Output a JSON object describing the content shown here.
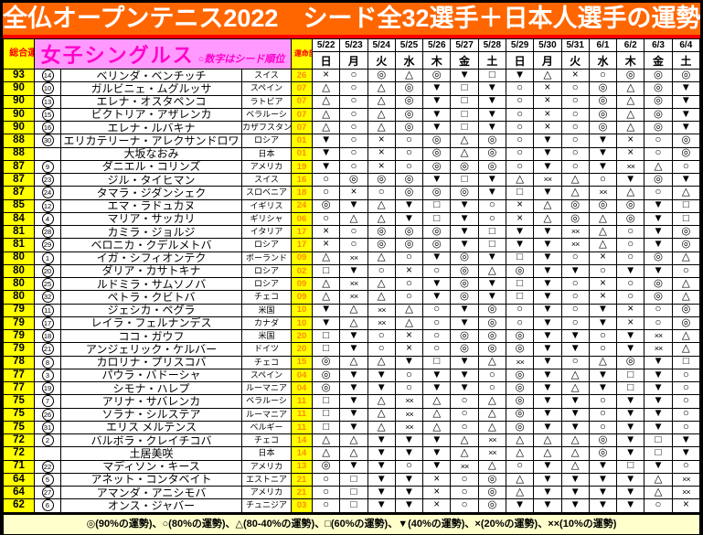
{
  "title": "全仏オープンテニス2022　シード全32選手＋日本人選手の運勢",
  "header": {
    "overall_label": "総合運勢",
    "section_title": "女子シングルス",
    "section_subtitle": "○数字はシード順位",
    "room_label": "運命部屋",
    "dates": [
      {
        "date": "5/22",
        "day": "日"
      },
      {
        "date": "5/23",
        "day": "月"
      },
      {
        "date": "5/24",
        "day": "火"
      },
      {
        "date": "5/25",
        "day": "水"
      },
      {
        "date": "5/26",
        "day": "木"
      },
      {
        "date": "5/27",
        "day": "金"
      },
      {
        "date": "5/28",
        "day": "土"
      },
      {
        "date": "5/29",
        "day": "日"
      },
      {
        "date": "5/30",
        "day": "月"
      },
      {
        "date": "5/31",
        "day": "火"
      },
      {
        "date": "6/1",
        "day": "水"
      },
      {
        "date": "6/2",
        "day": "木"
      },
      {
        "date": "6/3",
        "day": "金"
      },
      {
        "date": "6/4",
        "day": "土"
      }
    ]
  },
  "legend": "◎(90%の運勢)、○(80%の運勢)、△(80-40%の運勢)、□(60%の運勢)、▼(40%の運勢)、×(20%の運勢)、××(10%の運勢)",
  "colors": {
    "banner-bg": "#FF6600",
    "strip": "#FF0000",
    "yellow": "#FFFF00",
    "red-text": "#FF0000",
    "pink-bg": "#FF99FF",
    "pink-text": "#FF00CC",
    "room-text": "#FF8C00",
    "legend-bg": "#FFFFCC"
  },
  "rows": [
    {
      "score": "93",
      "seed": "14",
      "name": "ベリンダ・ベンチッチ",
      "country": "スイス",
      "room": "26",
      "fortunes": [
        "×",
        "○",
        "◎",
        "△",
        "◎",
        "▼",
        "□",
        "▼",
        "△",
        "×",
        "○",
        "◎",
        "◎",
        "◎"
      ]
    },
    {
      "score": "90",
      "seed": "10",
      "name": "ガルビニェ・ムグルッサ",
      "country": "スペイン",
      "room": "07",
      "fortunes": [
        "△",
        "○",
        "△",
        "◎",
        "▼",
        "□",
        "▼",
        "○",
        "×",
        "○",
        "◎",
        "△",
        "◎",
        "▼"
      ]
    },
    {
      "score": "90",
      "seed": "13",
      "name": "エレナ・オスタペンコ",
      "country": "ラトビア",
      "room": "07",
      "fortunes": [
        "△",
        "○",
        "△",
        "◎",
        "▼",
        "□",
        "▼",
        "○",
        "×",
        "○",
        "◎",
        "△",
        "◎",
        "▼"
      ]
    },
    {
      "score": "90",
      "seed": "15",
      "name": "ビクトリア・アザレンカ",
      "country": "ベラルーシ",
      "room": "07",
      "fortunes": [
        "△",
        "○",
        "△",
        "◎",
        "▼",
        "□",
        "▼",
        "○",
        "×",
        "○",
        "◎",
        "△",
        "◎",
        "▼"
      ]
    },
    {
      "score": "90",
      "seed": "16",
      "name": "エレナ・ルバキナ",
      "country": "カザフスタン",
      "room": "07",
      "fortunes": [
        "△",
        "○",
        "△",
        "◎",
        "▼",
        "□",
        "▼",
        "○",
        "×",
        "○",
        "◎",
        "△",
        "◎",
        "▼"
      ]
    },
    {
      "score": "88",
      "seed": "30",
      "name": "エリカテリーナ・アレクサンドロワ",
      "country": "ロシア",
      "room": "01",
      "fortunes": [
        "▼",
        "○",
        "×",
        "○",
        "◎",
        "△",
        "◎",
        "○",
        "▼",
        "○",
        "▼",
        "×",
        "○",
        "◎"
      ]
    },
    {
      "score": "88",
      "seed": "",
      "name": "大坂なおみ",
      "country": "日本",
      "room": "01",
      "fortunes": [
        "▼",
        "○",
        "×",
        "○",
        "◎",
        "△",
        "◎",
        "○",
        "▼",
        "○",
        "▼",
        "×",
        "○",
        "◎"
      ]
    },
    {
      "score": "87",
      "seed": "9",
      "name": "ダニエル・コリンズ",
      "country": "アメリカ",
      "room": "19",
      "fortunes": [
        "▼",
        "○",
        "×",
        "○",
        "◎",
        "◎",
        "◎",
        "○",
        "▼",
        "○",
        "▼",
        "××",
        "△",
        "○"
      ]
    },
    {
      "score": "87",
      "seed": "23",
      "name": "ジル・タイヒマン",
      "country": "スイス",
      "room": "16",
      "fortunes": [
        "○",
        "◎",
        "◎",
        "◎",
        "▼",
        "□",
        "▼",
        "△",
        "××",
        "△",
        "○",
        "▼",
        "◎",
        "▼"
      ]
    },
    {
      "score": "87",
      "seed": "24",
      "name": "タマラ・ジダンシェク",
      "country": "スロベニア",
      "room": "18",
      "fortunes": [
        "○",
        "×",
        "○",
        "◎",
        "◎",
        "◎",
        "▼",
        "□",
        "▼",
        "△",
        "××",
        "△",
        "○",
        "△"
      ]
    },
    {
      "score": "85",
      "seed": "12",
      "name": "エマ・ラドュカヌ",
      "country": "イギリス",
      "room": "24",
      "fortunes": [
        "◎",
        "▼",
        "△",
        "▼",
        "□",
        "▼",
        "○",
        "×",
        "△",
        "◎",
        "◎",
        "◎",
        "▼",
        "□"
      ]
    },
    {
      "score": "84",
      "seed": "4",
      "name": "マリア・サッカリ",
      "country": "ギリシャ",
      "room": "06",
      "fortunes": [
        "○",
        "△",
        "△",
        "▼",
        "□",
        "▼",
        "○",
        "×",
        "△",
        "◎",
        "△",
        "◎",
        "▼",
        "□"
      ]
    },
    {
      "score": "81",
      "seed": "28",
      "name": "カミラ・ジョルジ",
      "country": "イタリア",
      "room": "17",
      "fortunes": [
        "×",
        "○",
        "◎",
        "◎",
        "◎",
        "▼",
        "□",
        "▼",
        "▼",
        "××",
        "△",
        "○",
        "▼",
        "◎"
      ]
    },
    {
      "score": "81",
      "seed": "29",
      "name": "ベロニカ・クデルメトバ",
      "country": "ロシア",
      "room": "17",
      "fortunes": [
        "×",
        "○",
        "◎",
        "◎",
        "◎",
        "▼",
        "□",
        "▼",
        "▼",
        "××",
        "△",
        "○",
        "▼",
        "◎"
      ]
    },
    {
      "score": "80",
      "seed": "1",
      "name": "イガ・シフィオンテク",
      "country": "ポーランド",
      "room": "09",
      "fortunes": [
        "△",
        "××",
        "△",
        "○",
        "▼",
        "◎",
        "▼",
        "□",
        "▼",
        "○",
        "×",
        "○",
        "◎",
        "△"
      ]
    },
    {
      "score": "80",
      "seed": "20",
      "name": "ダリア・カサトキナ",
      "country": "ロシア",
      "room": "02",
      "fortunes": [
        "□",
        "▼",
        "○",
        "×",
        "○",
        "◎",
        "△",
        "◎",
        "▼",
        "▼",
        "○",
        "▼",
        "▼",
        "○"
      ]
    },
    {
      "score": "80",
      "seed": "25",
      "name": "ルドミラ・サムソノバ",
      "country": "ロシア",
      "room": "09",
      "fortunes": [
        "△",
        "××",
        "△",
        "○",
        "▼",
        "◎",
        "▼",
        "□",
        "▼",
        "○",
        "×",
        "○",
        "◎",
        "△"
      ]
    },
    {
      "score": "80",
      "seed": "32",
      "name": "ペトラ・クビトバ",
      "country": "チェコ",
      "room": "09",
      "fortunes": [
        "△",
        "××",
        "△",
        "○",
        "▼",
        "◎",
        "▼",
        "□",
        "▼",
        "○",
        "×",
        "○",
        "◎",
        "△"
      ]
    },
    {
      "score": "79",
      "seed": "11",
      "name": "ジェシカ・ペグラ",
      "country": "米国",
      "room": "10",
      "fortunes": [
        "▼",
        "△",
        "××",
        "△",
        "○",
        "▼",
        "◎",
        "○",
        "▼",
        "○",
        "▼",
        "×",
        "○",
        "◎"
      ]
    },
    {
      "score": "79",
      "seed": "17",
      "name": "レイラ・フェルナンデス",
      "country": "カナダ",
      "room": "10",
      "fortunes": [
        "▼",
        "△",
        "××",
        "△",
        "○",
        "▼",
        "◎",
        "○",
        "▼",
        "○",
        "▼",
        "×",
        "○",
        "◎"
      ]
    },
    {
      "score": "79",
      "seed": "18",
      "name": "ココ・ガウフ",
      "country": "米国",
      "room": "20",
      "fortunes": [
        "□",
        "▼",
        "○",
        "×",
        "○",
        "◎",
        "◎",
        "◎",
        "▼",
        "▼",
        "○",
        "▼",
        "××",
        "△"
      ]
    },
    {
      "score": "79",
      "seed": "21",
      "name": "アンジェリック・ケルバー",
      "country": "ドイツ",
      "room": "20",
      "fortunes": [
        "□",
        "▼",
        "○",
        "×",
        "○",
        "◎",
        "◎",
        "◎",
        "▼",
        "▼",
        "○",
        "▼",
        "××",
        "△"
      ]
    },
    {
      "score": "78",
      "seed": "8",
      "name": "カロリナ・プリスコバ",
      "country": "チェコ",
      "room": "15",
      "fortunes": [
        "◎",
        "△",
        "△",
        "▼",
        "□",
        "▼",
        "△",
        "××",
        "▼",
        "○",
        "△",
        "◎",
        "▼",
        "□"
      ]
    },
    {
      "score": "77",
      "seed": "3",
      "name": "パウラ・バドーシャ",
      "country": "スペイン",
      "room": "04",
      "fortunes": [
        "◎",
        "▼",
        "▼",
        "○",
        "▼",
        "▼",
        "○",
        "◎",
        "▼",
        "△",
        "▼",
        "□",
        "▼",
        "○"
      ]
    },
    {
      "score": "77",
      "seed": "19",
      "name": "シモナ・ハレプ",
      "country": "ルーマニア",
      "room": "04",
      "fortunes": [
        "◎",
        "▼",
        "▼",
        "○",
        "▼",
        "▼",
        "○",
        "◎",
        "▼",
        "△",
        "▼",
        "□",
        "▼",
        "○"
      ]
    },
    {
      "score": "75",
      "seed": "7",
      "name": "アリナ・サバレンカ",
      "country": "ベラルーシ",
      "room": "11",
      "fortunes": [
        "□",
        "▼",
        "△",
        "××",
        "△",
        "○",
        "△",
        "◎",
        "▼",
        "▼",
        "○",
        "▼",
        "▼",
        "○"
      ]
    },
    {
      "score": "75",
      "seed": "26",
      "name": "ソラナ・シルステア",
      "country": "ルーマニア",
      "room": "11",
      "fortunes": [
        "□",
        "▼",
        "△",
        "××",
        "△",
        "○",
        "△",
        "◎",
        "▼",
        "▼",
        "○",
        "▼",
        "▼",
        "○"
      ]
    },
    {
      "score": "75",
      "seed": "31",
      "name": "エリス メルテンス",
      "country": "ベルギー",
      "room": "11",
      "fortunes": [
        "□",
        "▼",
        "△",
        "××",
        "△",
        "○",
        "△",
        "◎",
        "▼",
        "▼",
        "○",
        "▼",
        "▼",
        "○"
      ]
    },
    {
      "score": "72",
      "seed": "2",
      "name": "バルボラ・クレイチコバ",
      "country": "チェコ",
      "room": "14",
      "fortunes": [
        "△",
        "△",
        "▼",
        "▼",
        "▼",
        "△",
        "××",
        "△",
        "△",
        "△",
        "◎",
        "▼",
        "□",
        "▼"
      ]
    },
    {
      "score": "72",
      "seed": "",
      "name": "土居美咲",
      "country": "日本",
      "room": "14",
      "fortunes": [
        "△",
        "△",
        "▼",
        "▼",
        "▼",
        "△",
        "××",
        "△",
        "△",
        "△",
        "◎",
        "▼",
        "□",
        "▼"
      ]
    },
    {
      "score": "71",
      "seed": "22",
      "name": "マディソン・キース",
      "country": "アメリカ",
      "room": "13",
      "fortunes": [
        "◎",
        "▼",
        "▼",
        "○",
        "▼",
        "××",
        "△",
        "○",
        "▼",
        "△",
        "▼",
        "□",
        "▼",
        "○"
      ]
    },
    {
      "score": "64",
      "seed": "5",
      "name": "アネット・コンタベイト",
      "country": "エストニア",
      "room": "21",
      "fortunes": [
        "○",
        "□",
        "▼",
        "▼",
        "×",
        "○",
        "◎",
        "△",
        "▼",
        "▼",
        "▼",
        "▼",
        "△",
        "××"
      ]
    },
    {
      "score": "64",
      "seed": "27",
      "name": "アマンダ・アニシモバ",
      "country": "アメリカ",
      "room": "21",
      "fortunes": [
        "○",
        "□",
        "▼",
        "▼",
        "×",
        "○",
        "◎",
        "△",
        "▼",
        "▼",
        "▼",
        "▼",
        "△",
        "××"
      ]
    },
    {
      "score": "62",
      "seed": "6",
      "name": "オンス・ジャバー",
      "country": "チュニジア",
      "room": "03",
      "fortunes": [
        "○",
        "□",
        "▼",
        "▼",
        "×",
        "○",
        "◎",
        "▼",
        "▼",
        "▼",
        "▼",
        "▼",
        "○",
        "×"
      ]
    }
  ]
}
